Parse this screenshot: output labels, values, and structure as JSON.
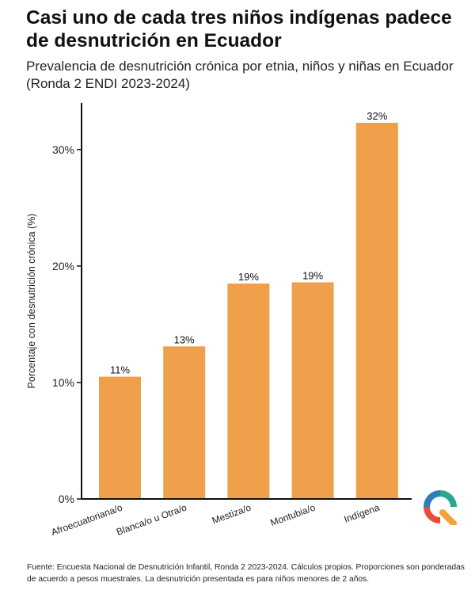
{
  "chart_data": {
    "type": "bar",
    "title": "Casi uno de cada tres niños indígenas padece de desnutrición en Ecuador",
    "subtitle": "Prevalencia de desnutrición crónica por etnia, niños y niñas en Ecuador (Ronda 2 ENDI 2023-2024)",
    "xlabel": "",
    "ylabel": "Porcentaje con desnutrición crónica (%)",
    "categories": [
      "Afroecuatoriana/o",
      "Blanca/o u Otra/o",
      "Mestiza/o",
      "Montubia/o",
      "Indígena"
    ],
    "values": [
      10.5,
      13.1,
      18.5,
      18.6,
      32.3
    ],
    "data_labels": [
      "11%",
      "13%",
      "19%",
      "19%",
      "32%"
    ],
    "ylim": [
      0,
      34
    ],
    "yticks": [
      0,
      10,
      20,
      30
    ],
    "ytick_labels": [
      "0%",
      "10%",
      "20%",
      "30%"
    ],
    "grid": false,
    "bar_color": "#F0A04B"
  },
  "footer": {
    "source": "Fuente: Encuesta Nacional de Desnutrición Infantil, Ronda 2 2023-2024. Cálculos propios. Proporciones son ponderadas de acuerdo a pesos muestrales. La desnutrición presentada es para niños menores de 2 años."
  },
  "logo": {
    "icon": "q-logo-icon",
    "colors": [
      "#2E7DB5",
      "#2AA88F",
      "#E94E3D",
      "#F2A33A"
    ]
  }
}
